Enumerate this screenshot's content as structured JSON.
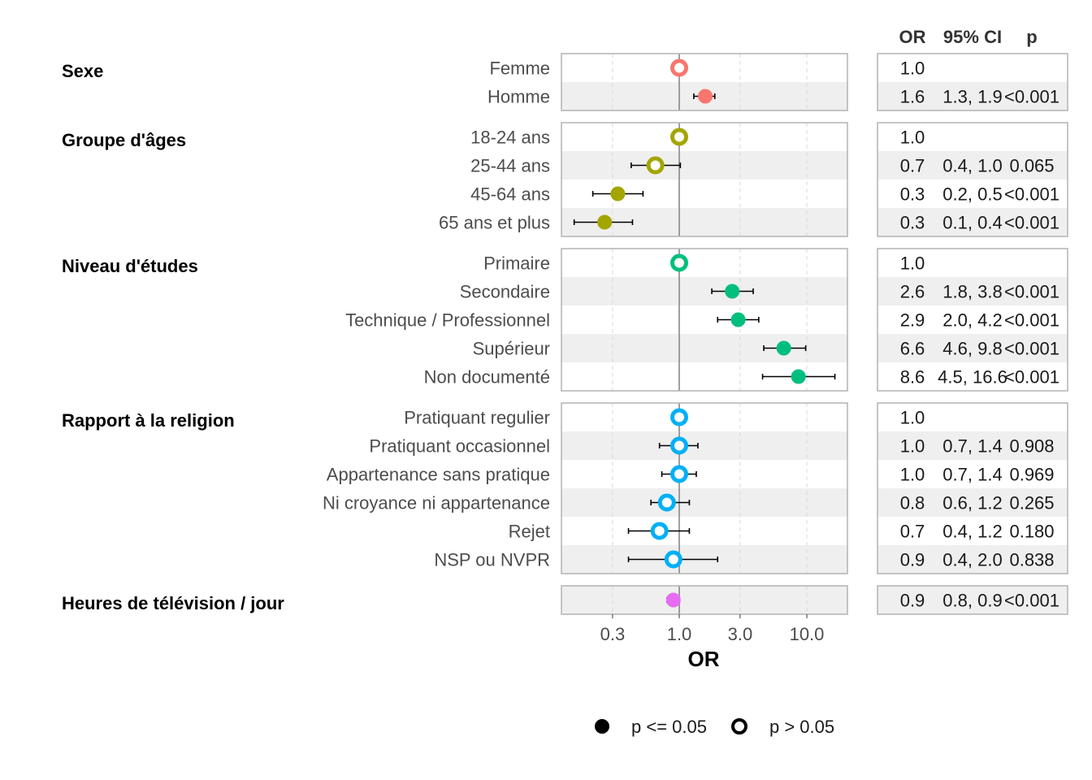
{
  "chart_data": {
    "type": "forest",
    "xlabel": "OR",
    "x_scale": "log",
    "xlim": [
      0.1,
      20
    ],
    "reference_line": 1.0,
    "x_ticks": [
      {
        "value": 0.3,
        "label": "0.3"
      },
      {
        "value": 1.0,
        "label": "1.0"
      },
      {
        "value": 3.0,
        "label": "3.0"
      },
      {
        "value": 10.0,
        "label": "10.0"
      }
    ],
    "table_headers": {
      "or": "OR",
      "ci": "95% CI",
      "p": "p"
    },
    "legend": {
      "significant": "p <= 0.05",
      "not_significant": "p > 0.05"
    },
    "groups": [
      {
        "title": "Sexe",
        "color": "#F8766D",
        "rows": [
          {
            "label": "Femme",
            "or": 1.0,
            "lo": null,
            "hi": null,
            "sig": false,
            "or_text": "1.0",
            "ci_text": "",
            "p_text": ""
          },
          {
            "label": "Homme",
            "or": 1.6,
            "lo": 1.3,
            "hi": 1.9,
            "sig": true,
            "or_text": "1.6",
            "ci_text": "1.3, 1.9",
            "p_text": "<0.001"
          }
        ]
      },
      {
        "title": "Groupe d'âges",
        "color": "#A3A500",
        "rows": [
          {
            "label": "18-24 ans",
            "or": 1.0,
            "lo": null,
            "hi": null,
            "sig": false,
            "or_text": "1.0",
            "ci_text": "",
            "p_text": ""
          },
          {
            "label": "25-44 ans",
            "or": 0.65,
            "lo": 0.42,
            "hi": 1.02,
            "sig": false,
            "or_text": "0.7",
            "ci_text": "0.4, 1.0",
            "p_text": "0.065"
          },
          {
            "label": "45-64 ans",
            "or": 0.33,
            "lo": 0.21,
            "hi": 0.52,
            "sig": true,
            "or_text": "0.3",
            "ci_text": "0.2, 0.5",
            "p_text": "<0.001"
          },
          {
            "label": "65 ans et plus",
            "or": 0.26,
            "lo": 0.15,
            "hi": 0.43,
            "sig": true,
            "or_text": "0.3",
            "ci_text": "0.1, 0.4",
            "p_text": "<0.001"
          }
        ]
      },
      {
        "title": "Niveau d'études",
        "color": "#00BF7D",
        "rows": [
          {
            "label": "Primaire",
            "or": 1.0,
            "lo": null,
            "hi": null,
            "sig": false,
            "or_text": "1.0",
            "ci_text": "",
            "p_text": ""
          },
          {
            "label": "Secondaire",
            "or": 2.6,
            "lo": 1.8,
            "hi": 3.8,
            "sig": true,
            "or_text": "2.6",
            "ci_text": "1.8, 3.8",
            "p_text": "<0.001"
          },
          {
            "label": "Technique / Professionnel",
            "or": 2.9,
            "lo": 2.0,
            "hi": 4.2,
            "sig": true,
            "or_text": "2.9",
            "ci_text": "2.0, 4.2",
            "p_text": "<0.001"
          },
          {
            "label": "Supérieur",
            "or": 6.6,
            "lo": 4.6,
            "hi": 9.8,
            "sig": true,
            "or_text": "6.6",
            "ci_text": "4.6, 9.8",
            "p_text": "<0.001"
          },
          {
            "label": "Non documenté",
            "or": 8.6,
            "lo": 4.5,
            "hi": 16.6,
            "sig": true,
            "or_text": "8.6",
            "ci_text": "4.5, 16.6",
            "p_text": "<0.001"
          }
        ]
      },
      {
        "title": "Rapport à la religion",
        "color": "#00B0F6",
        "rows": [
          {
            "label": "Pratiquant regulier",
            "or": 1.0,
            "lo": null,
            "hi": null,
            "sig": false,
            "or_text": "1.0",
            "ci_text": "",
            "p_text": ""
          },
          {
            "label": "Pratiquant occasionnel",
            "or": 1.0,
            "lo": 0.7,
            "hi": 1.4,
            "sig": false,
            "or_text": "1.0",
            "ci_text": "0.7, 1.4",
            "p_text": "0.908"
          },
          {
            "label": "Appartenance sans pratique",
            "or": 1.0,
            "lo": 0.73,
            "hi": 1.36,
            "sig": false,
            "or_text": "1.0",
            "ci_text": "0.7, 1.4",
            "p_text": "0.969"
          },
          {
            "label": "Ni croyance ni appartenance",
            "or": 0.8,
            "lo": 0.6,
            "hi": 1.2,
            "sig": false,
            "or_text": "0.8",
            "ci_text": "0.6, 1.2",
            "p_text": "0.265"
          },
          {
            "label": "Rejet",
            "or": 0.7,
            "lo": 0.4,
            "hi": 1.2,
            "sig": false,
            "or_text": "0.7",
            "ci_text": "0.4, 1.2",
            "p_text": "0.180"
          },
          {
            "label": "NSP ou NVPR",
            "or": 0.9,
            "lo": 0.4,
            "hi": 2.0,
            "sig": false,
            "or_text": "0.9",
            "ci_text": "0.4, 2.0",
            "p_text": "0.838"
          }
        ]
      },
      {
        "title": "Heures de télévision / jour",
        "color": "#E76BF3",
        "rows": [
          {
            "label": "",
            "or": 0.9,
            "lo": 0.8,
            "hi": 0.9,
            "sig": true,
            "or_text": "0.9",
            "ci_text": "0.8, 0.9",
            "p_text": "<0.001"
          }
        ]
      }
    ]
  }
}
